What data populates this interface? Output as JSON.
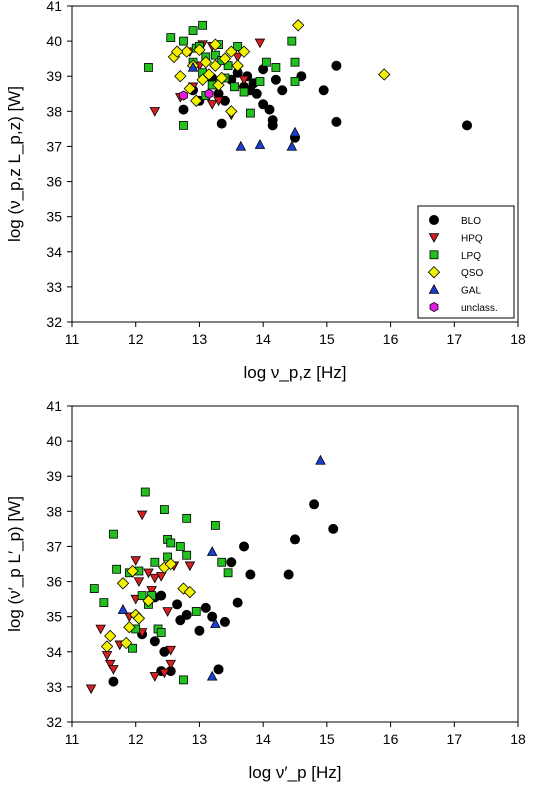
{
  "colors": {
    "BLO": "#000000",
    "HPQ": "#d42020",
    "LPQ": "#22c21e",
    "QSO": "#f2f200",
    "GAL": "#1a3fd6",
    "unclass": "#e31be0"
  },
  "chart_data": [
    {
      "type": "scatter",
      "xlabel": "log ν_p,z [Hz]",
      "ylabel": "log (ν_p,z L_p,z) [W]",
      "xlim": [
        11,
        18
      ],
      "ylim": [
        32,
        41
      ],
      "x_ticks": [
        "11",
        "12",
        "13",
        "14",
        "15",
        "16",
        "17",
        "18"
      ],
      "y_ticks": [
        "32",
        "33",
        "34",
        "35",
        "36",
        "37",
        "38",
        "39",
        "40",
        "41"
      ],
      "grid": false,
      "legend": {
        "placement": "bottom-right",
        "entries": [
          {
            "key": "BLO",
            "label": "BLO",
            "marker": "circle"
          },
          {
            "key": "HPQ",
            "label": "HPQ",
            "marker": "triangle-down"
          },
          {
            "key": "LPQ",
            "label": "LPQ",
            "marker": "square"
          },
          {
            "key": "QSO",
            "label": "QSO",
            "marker": "diamond"
          },
          {
            "key": "GAL",
            "label": "GAL",
            "marker": "triangle-up"
          },
          {
            "key": "unclass",
            "label": "unclass.",
            "marker": "hexagon"
          }
        ]
      },
      "series": [
        {
          "name": "BLO",
          "marker": "circle",
          "points": [
            [
              12.75,
              38.05
            ],
            [
              13.0,
              38.3
            ],
            [
              13.1,
              39.0
            ],
            [
              13.3,
              38.5
            ],
            [
              13.4,
              38.3
            ],
            [
              13.35,
              37.65
            ],
            [
              13.5,
              38.9
            ],
            [
              13.7,
              38.7
            ],
            [
              13.75,
              39.0
            ],
            [
              13.85,
              38.8
            ],
            [
              13.9,
              38.5
            ],
            [
              14.0,
              39.2
            ],
            [
              14.0,
              38.2
            ],
            [
              14.1,
              38.05
            ],
            [
              14.15,
              37.75
            ],
            [
              14.15,
              37.6
            ],
            [
              14.2,
              38.9
            ],
            [
              14.3,
              38.6
            ],
            [
              14.5,
              37.25
            ],
            [
              14.6,
              39.0
            ],
            [
              14.95,
              38.6
            ],
            [
              15.15,
              39.3
            ],
            [
              15.15,
              37.7
            ],
            [
              17.2,
              37.6
            ],
            [
              13.2,
              38.95
            ],
            [
              13.6,
              39.1
            ],
            [
              12.9,
              38.6
            ],
            [
              13.8,
              38.6
            ]
          ]
        },
        {
          "name": "HPQ",
          "marker": "triangle-down",
          "points": [
            [
              12.3,
              38.0
            ],
            [
              12.7,
              38.4
            ],
            [
              12.9,
              38.7
            ],
            [
              13.0,
              39.3
            ],
            [
              13.2,
              39.85
            ],
            [
              13.3,
              38.3
            ],
            [
              13.5,
              37.9
            ],
            [
              13.6,
              39.55
            ],
            [
              13.7,
              38.9
            ],
            [
              13.95,
              39.95
            ],
            [
              12.85,
              39.7
            ],
            [
              13.1,
              39.0
            ],
            [
              13.2,
              38.2
            ],
            [
              13.05,
              39.9
            ]
          ]
        },
        {
          "name": "LPQ",
          "marker": "square",
          "points": [
            [
              12.2,
              39.25
            ],
            [
              12.55,
              40.1
            ],
            [
              12.75,
              40.0
            ],
            [
              12.9,
              40.3
            ],
            [
              13.05,
              40.45
            ],
            [
              12.95,
              39.8
            ],
            [
              13.1,
              39.55
            ],
            [
              13.25,
              39.6
            ],
            [
              13.35,
              39.45
            ],
            [
              13.45,
              39.3
            ],
            [
              13.4,
              38.95
            ],
            [
              13.2,
              38.75
            ],
            [
              13.1,
              38.45
            ],
            [
              13.55,
              38.7
            ],
            [
              13.7,
              38.55
            ],
            [
              13.8,
              37.95
            ],
            [
              13.95,
              38.85
            ],
            [
              14.05,
              39.4
            ],
            [
              14.2,
              39.25
            ],
            [
              14.45,
              40.0
            ],
            [
              14.5,
              39.4
            ],
            [
              14.5,
              38.85
            ],
            [
              12.75,
              37.6
            ],
            [
              13.0,
              39.85
            ],
            [
              13.6,
              39.85
            ],
            [
              12.9,
              39.4
            ],
            [
              13.3,
              39.9
            ],
            [
              13.05,
              39.1
            ]
          ]
        },
        {
          "name": "QSO",
          "marker": "diamond",
          "points": [
            [
              12.6,
              39.55
            ],
            [
              12.7,
              39.0
            ],
            [
              12.8,
              39.7
            ],
            [
              12.85,
              38.65
            ],
            [
              12.9,
              39.3
            ],
            [
              13.0,
              39.75
            ],
            [
              13.05,
              38.9
            ],
            [
              13.15,
              39.05
            ],
            [
              13.25,
              39.3
            ],
            [
              13.3,
              38.75
            ],
            [
              13.4,
              39.5
            ],
            [
              13.5,
              39.7
            ],
            [
              13.6,
              39.3
            ],
            [
              13.7,
              39.7
            ],
            [
              13.25,
              39.9
            ],
            [
              12.95,
              38.3
            ],
            [
              13.1,
              39.4
            ],
            [
              13.5,
              38.0
            ],
            [
              14.55,
              40.45
            ],
            [
              15.9,
              39.05
            ],
            [
              12.65,
              39.7
            ],
            [
              13.35,
              38.95
            ]
          ]
        },
        {
          "name": "GAL",
          "marker": "triangle-up",
          "points": [
            [
              12.9,
              39.25
            ],
            [
              13.65,
              37.0
            ],
            [
              13.95,
              37.05
            ],
            [
              14.45,
              37.0
            ],
            [
              14.5,
              37.4
            ]
          ]
        },
        {
          "name": "unclass.",
          "marker": "hexagon",
          "points": [
            [
              12.75,
              38.45
            ],
            [
              13.15,
              38.5
            ]
          ]
        }
      ]
    },
    {
      "type": "scatter",
      "xlabel": "log ν′_p [Hz]",
      "ylabel": "log (ν′_p L′_p) [W]",
      "xlim": [
        11,
        18
      ],
      "ylim": [
        32,
        41
      ],
      "x_ticks": [
        "11",
        "12",
        "13",
        "14",
        "15",
        "16",
        "17",
        "18"
      ],
      "y_ticks": [
        "32",
        "33",
        "34",
        "35",
        "36",
        "37",
        "38",
        "39",
        "40",
        "41"
      ],
      "grid": false,
      "series": [
        {
          "name": "BLO",
          "marker": "circle",
          "points": [
            [
              11.65,
              33.15
            ],
            [
              12.1,
              34.5
            ],
            [
              12.2,
              35.45
            ],
            [
              12.3,
              34.3
            ],
            [
              12.4,
              33.45
            ],
            [
              12.45,
              34.0
            ],
            [
              12.55,
              33.45
            ],
            [
              12.65,
              35.35
            ],
            [
              12.7,
              34.9
            ],
            [
              12.8,
              35.05
            ],
            [
              13.0,
              34.6
            ],
            [
              13.1,
              35.25
            ],
            [
              13.2,
              35.0
            ],
            [
              13.3,
              33.5
            ],
            [
              13.4,
              34.85
            ],
            [
              13.5,
              36.55
            ],
            [
              13.6,
              35.4
            ],
            [
              13.7,
              37.0
            ],
            [
              13.8,
              36.2
            ],
            [
              14.4,
              36.2
            ],
            [
              14.5,
              37.2
            ],
            [
              14.8,
              38.2
            ],
            [
              15.1,
              37.5
            ],
            [
              12.4,
              35.6
            ],
            [
              12.3,
              35.55
            ]
          ]
        },
        {
          "name": "HPQ",
          "marker": "triangle-down",
          "points": [
            [
              11.3,
              32.95
            ],
            [
              11.45,
              34.65
            ],
            [
              11.55,
              33.9
            ],
            [
              11.6,
              33.65
            ],
            [
              11.65,
              33.5
            ],
            [
              11.75,
              34.2
            ],
            [
              11.9,
              35.0
            ],
            [
              12.0,
              35.5
            ],
            [
              12.05,
              36.0
            ],
            [
              12.1,
              37.9
            ],
            [
              12.25,
              35.75
            ],
            [
              12.3,
              36.1
            ],
            [
              12.3,
              33.3
            ],
            [
              12.4,
              36.15
            ],
            [
              12.45,
              33.4
            ],
            [
              12.55,
              34.05
            ],
            [
              12.55,
              33.65
            ],
            [
              12.6,
              36.45
            ],
            [
              12.85,
              36.45
            ],
            [
              12.0,
              36.6
            ],
            [
              12.1,
              34.55
            ],
            [
              12.2,
              36.25
            ],
            [
              12.5,
              35.15
            ]
          ]
        },
        {
          "name": "LPQ",
          "marker": "square",
          "points": [
            [
              11.35,
              35.8
            ],
            [
              11.5,
              35.4
            ],
            [
              11.65,
              37.35
            ],
            [
              11.7,
              36.35
            ],
            [
              11.9,
              36.25
            ],
            [
              12.0,
              34.65
            ],
            [
              12.1,
              35.6
            ],
            [
              12.15,
              38.55
            ],
            [
              12.2,
              35.35
            ],
            [
              12.3,
              36.55
            ],
            [
              12.35,
              34.65
            ],
            [
              12.45,
              38.05
            ],
            [
              12.5,
              37.2
            ],
            [
              12.55,
              37.1
            ],
            [
              12.7,
              37.0
            ],
            [
              12.8,
              37.8
            ],
            [
              12.8,
              36.75
            ],
            [
              12.95,
              35.15
            ],
            [
              13.25,
              37.6
            ],
            [
              13.35,
              36.55
            ],
            [
              13.45,
              36.25
            ],
            [
              12.75,
              33.2
            ],
            [
              11.95,
              34.1
            ],
            [
              12.5,
              36.7
            ],
            [
              12.4,
              34.55
            ],
            [
              12.05,
              36.3
            ],
            [
              12.25,
              35.6
            ]
          ]
        },
        {
          "name": "QSO",
          "marker": "diamond",
          "points": [
            [
              11.55,
              34.15
            ],
            [
              11.6,
              34.45
            ],
            [
              11.8,
              35.95
            ],
            [
              11.9,
              34.7
            ],
            [
              11.95,
              36.3
            ],
            [
              12.0,
              35.05
            ],
            [
              12.05,
              34.95
            ],
            [
              12.2,
              35.45
            ],
            [
              12.45,
              36.4
            ],
            [
              12.55,
              36.5
            ],
            [
              12.75,
              35.8
            ],
            [
              12.85,
              35.7
            ],
            [
              11.85,
              34.25
            ]
          ]
        },
        {
          "name": "GAL",
          "marker": "triangle-up",
          "points": [
            [
              11.8,
              35.2
            ],
            [
              13.2,
              36.85
            ],
            [
              13.25,
              34.8
            ],
            [
              13.2,
              33.3
            ],
            [
              14.9,
              39.45
            ]
          ]
        }
      ]
    }
  ]
}
